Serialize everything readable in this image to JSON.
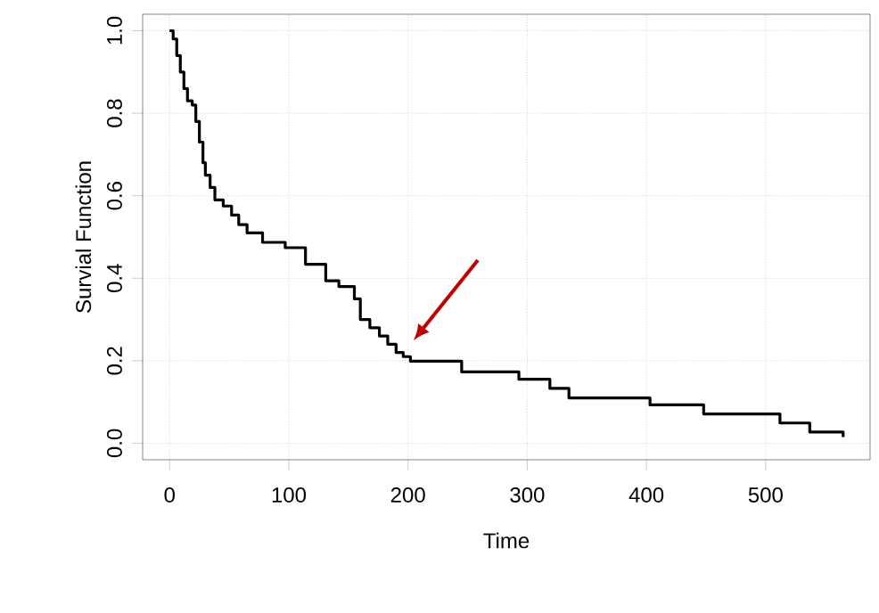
{
  "chart_data": {
    "type": "step",
    "xlabel": "Time",
    "ylabel": "Survial Function",
    "x": [
      0,
      3,
      6,
      9,
      12,
      15,
      19,
      22,
      25,
      28,
      30,
      34,
      38,
      45,
      52,
      58,
      65,
      78,
      97,
      114,
      131,
      142,
      155,
      160,
      168,
      176,
      183,
      190,
      196,
      202,
      245,
      293,
      319,
      335,
      403,
      448,
      512,
      537,
      565
    ],
    "values": [
      1.0,
      0.98,
      0.94,
      0.9,
      0.86,
      0.83,
      0.82,
      0.78,
      0.73,
      0.68,
      0.65,
      0.62,
      0.59,
      0.575,
      0.553,
      0.53,
      0.51,
      0.487,
      0.474,
      0.434,
      0.394,
      0.38,
      0.35,
      0.3,
      0.28,
      0.26,
      0.24,
      0.22,
      0.21,
      0.199,
      0.173,
      0.155,
      0.133,
      0.11,
      0.093,
      0.071,
      0.049,
      0.027,
      0.015
    ],
    "color": "#000000",
    "xlim": [
      -22.6,
      587.6
    ],
    "ylim": [
      -0.04,
      1.04
    ],
    "xticks": [
      0,
      100,
      200,
      300,
      400,
      500
    ],
    "yticks": [
      {
        "value": 0,
        "label": "0.0"
      },
      {
        "value": 0.2,
        "label": "0.2"
      },
      {
        "value": 0.4,
        "label": "0.4"
      },
      {
        "value": 0.6,
        "label": "0.6"
      },
      {
        "value": 0.8,
        "label": "0.8"
      },
      {
        "value": 1.0,
        "label": "1.0"
      }
    ],
    "grid": true
  }
}
